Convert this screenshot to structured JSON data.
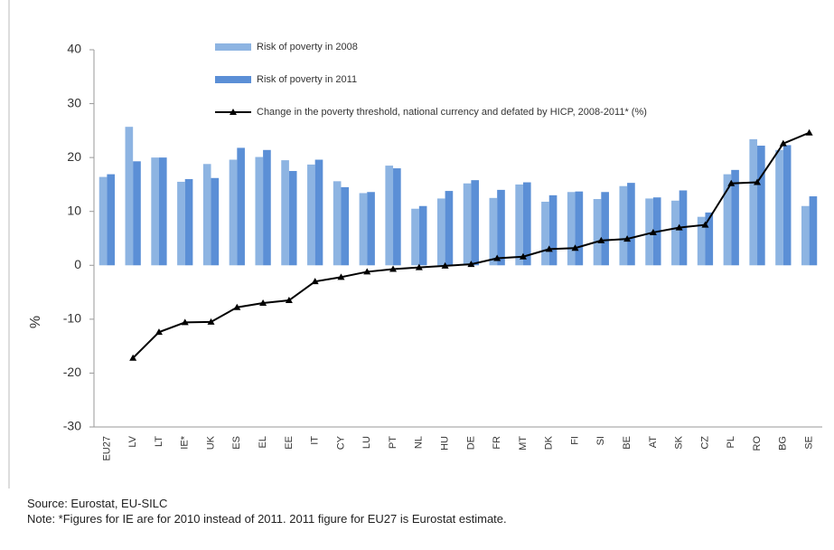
{
  "chart_data": {
    "type": "bar",
    "ylabel": "%",
    "categories": [
      "EU27",
      "LV",
      "LT",
      "IE*",
      "UK",
      "ES",
      "EL",
      "EE",
      "IT",
      "CY",
      "LU",
      "PT",
      "NL",
      "HU",
      "DE",
      "FR",
      "MT",
      "DK",
      "FI",
      "SI",
      "BE",
      "AT",
      "SK",
      "CZ",
      "PL",
      "RO",
      "BG",
      "SE"
    ],
    "series": [
      {
        "name": "Risk of poverty in 2008",
        "type": "bar",
        "color": "#8db4e2",
        "values": [
          16.4,
          25.7,
          20.0,
          15.5,
          18.8,
          19.6,
          20.1,
          19.5,
          18.7,
          15.6,
          13.4,
          18.5,
          10.5,
          12.4,
          15.2,
          12.5,
          15.0,
          11.8,
          13.6,
          12.3,
          14.7,
          12.4,
          12.0,
          9.0,
          16.9,
          23.4,
          21.4,
          11.0
        ]
      },
      {
        "name": "Risk of poverty in 2011",
        "type": "bar",
        "color": "#5b8fd6",
        "values": [
          16.9,
          19.3,
          20.0,
          16.0,
          16.2,
          21.8,
          21.4,
          17.5,
          19.6,
          14.5,
          13.6,
          18.0,
          11.0,
          13.8,
          15.8,
          14.0,
          15.4,
          13.0,
          13.7,
          13.6,
          15.3,
          12.6,
          13.9,
          9.8,
          17.7,
          22.2,
          22.3,
          12.8
        ]
      },
      {
        "name": "Change in the poverty threshold, national currency and defated by HICP, 2008-2011* (%)",
        "type": "line",
        "color": "#000000",
        "values": [
          null,
          -17.2,
          -12.4,
          -10.6,
          -10.5,
          -7.8,
          -7.0,
          -6.5,
          -3.0,
          -2.2,
          -1.2,
          -0.7,
          -0.4,
          -0.1,
          0.2,
          1.3,
          1.6,
          3.0,
          3.2,
          4.6,
          4.9,
          6.1,
          7.0,
          7.5,
          15.2,
          15.4,
          22.6,
          24.6
        ]
      }
    ],
    "ylim": [
      -30,
      40
    ],
    "yticks": [
      -30,
      -20,
      -10,
      0,
      10,
      20,
      30,
      40
    ],
    "source": "Source: Eurostat, EU-SILC",
    "note": "Note: *Figures for IE are for 2010 instead of 2011. 2011 figure for EU27 is Eurostat estimate."
  }
}
